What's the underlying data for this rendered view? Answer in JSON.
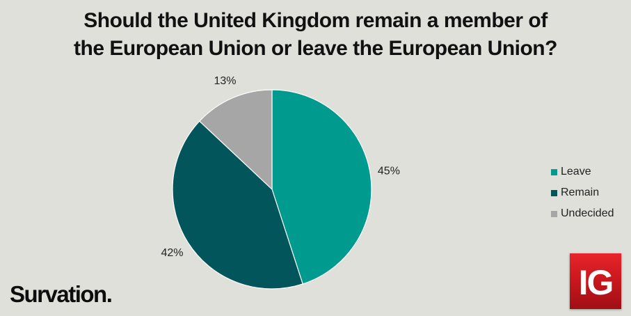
{
  "chart_data": {
    "type": "pie",
    "title": "Should the United Kingdom remain a member of the European Union or leave the European Union?",
    "title_lines": [
      "Should the United Kingdom remain a member of",
      "the European Union or leave the European Union?"
    ],
    "categories": [
      "Leave",
      "Remain",
      "Undecided"
    ],
    "values": [
      45,
      42,
      13
    ],
    "data_labels": [
      "45%",
      "42%",
      "13%"
    ],
    "colors": [
      "#009a8e",
      "#02555b",
      "#a6a6a6"
    ],
    "legend": {
      "placement": "right",
      "entries": [
        "Leave",
        "Remain",
        "Undecided"
      ]
    },
    "start_angle": "12 o'clock",
    "direction": "clockwise"
  },
  "branding": {
    "survation": "Survation.",
    "ig": "IG"
  },
  "background_color": "#dfe0d9"
}
